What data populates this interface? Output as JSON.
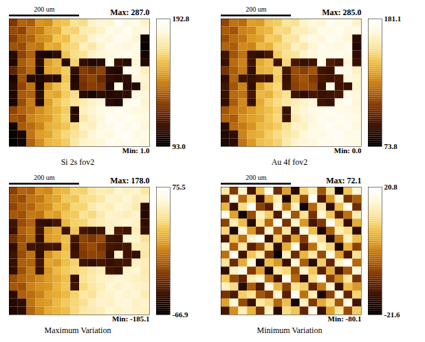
{
  "chart_data": [
    {
      "type": "heatmap",
      "title": "Si 2s fov2",
      "xlim": [
        0,
        400
      ],
      "ylim": [
        0,
        400
      ],
      "tick_labels": false,
      "scale_bar": {
        "label": "200 um",
        "length": 200
      },
      "max_label": "Max: 287.0",
      "min_label": "Min: 1.0",
      "colorbar": {
        "range": [
          93,
          192.8
        ],
        "ticks": [
          192.8,
          {
            "value": 93,
            "label": "93.0"
          }
        ]
      },
      "cells": [
        [
          124,
          136,
          134,
          148,
          146,
          158,
          160,
          170,
          168,
          178,
          182,
          180,
          188,
          184,
          186,
          178
        ],
        [
          130,
          128,
          140,
          142,
          152,
          154,
          166,
          164,
          174,
          174,
          178,
          186,
          184,
          188,
          182,
          184
        ],
        [
          126,
          134,
          136,
          146,
          148,
          160,
          158,
          170,
          170,
          180,
          184,
          182,
          188,
          186,
          180,
          98
        ],
        [
          132,
          130,
          142,
          140,
          154,
          152,
          164,
          166,
          176,
          172,
          180,
          186,
          184,
          182,
          186,
          96
        ],
        [
          104,
          128,
          136,
          102,
          100,
          106,
          160,
          168,
          170,
          178,
          182,
          184,
          186,
          188,
          184,
          100
        ],
        [
          102,
          134,
          140,
          104,
          150,
          156,
          104,
          164,
          106,
          102,
          104,
          186,
          108,
          104,
          182,
          102
        ],
        [
          118,
          130,
          138,
          100,
          152,
          154,
          162,
          106,
          126,
          122,
          128,
          104,
          102,
          188,
          186,
          176
        ],
        [
          100,
          132,
          104,
          102,
          106,
          104,
          160,
          102,
          124,
          128,
          120,
          106,
          104,
          106,
          182,
          180
        ],
        [
          104,
          128,
          140,
          100,
          148,
          158,
          164,
          104,
          122,
          126,
          124,
          102,
          186,
          104,
          102,
          178
        ],
        [
          102,
          134,
          136,
          106,
          154,
          152,
          162,
          168,
          104,
          100,
          106,
          102,
          104,
          106,
          184,
          182
        ],
        [
          100,
          130,
          142,
          102,
          150,
          160,
          166,
          170,
          174,
          178,
          182,
          104,
          102,
          186,
          188,
          180
        ],
        [
          128,
          136,
          140,
          146,
          152,
          156,
          162,
          102,
          176,
          180,
          184,
          186,
          188,
          186,
          184,
          182
        ],
        [
          132,
          130,
          144,
          148,
          150,
          158,
          164,
          104,
          172,
          178,
          182,
          188,
          186,
          188,
          186,
          184
        ],
        [
          98,
          134,
          138,
          144,
          154,
          156,
          160,
          168,
          178,
          176,
          184,
          186,
          190,
          186,
          188,
          182
        ],
        [
          96,
          100,
          140,
          150,
          152,
          160,
          166,
          170,
          174,
          182,
          186,
          184,
          188,
          190,
          184,
          186
        ],
        [
          94,
          98,
          136,
          146,
          156,
          158,
          162,
          172,
          178,
          180,
          182,
          188,
          186,
          188,
          186,
          184
        ]
      ]
    },
    {
      "type": "heatmap",
      "title": "Au 4f fov2",
      "xlim": [
        0,
        400
      ],
      "ylim": [
        0,
        400
      ],
      "tick_labels": false,
      "scale_bar": {
        "label": "200 um",
        "length": 200
      },
      "max_label": "Max: 285.0",
      "min_label": "Min: 0.0",
      "colorbar": {
        "range": [
          73.8,
          181.1
        ],
        "ticks": [
          181.1,
          73.8
        ]
      },
      "cells": [
        [
          112,
          124,
          122,
          136,
          134,
          146,
          148,
          158,
          156,
          166,
          170,
          168,
          176,
          172,
          174,
          166
        ],
        [
          118,
          116,
          128,
          130,
          140,
          142,
          154,
          152,
          162,
          162,
          166,
          174,
          172,
          176,
          170,
          172
        ],
        [
          114,
          122,
          124,
          134,
          136,
          148,
          146,
          158,
          158,
          168,
          172,
          170,
          176,
          174,
          168,
          86
        ],
        [
          120,
          118,
          130,
          128,
          142,
          140,
          152,
          154,
          164,
          160,
          168,
          174,
          172,
          170,
          174,
          84
        ],
        [
          92,
          116,
          124,
          90,
          88,
          94,
          148,
          156,
          158,
          166,
          170,
          172,
          174,
          176,
          172,
          88
        ],
        [
          90,
          122,
          128,
          92,
          138,
          144,
          92,
          152,
          94,
          90,
          92,
          174,
          96,
          92,
          170,
          90
        ],
        [
          106,
          118,
          126,
          88,
          140,
          142,
          150,
          94,
          114,
          110,
          116,
          92,
          90,
          176,
          174,
          164
        ],
        [
          88,
          120,
          92,
          90,
          94,
          92,
          148,
          90,
          112,
          116,
          108,
          94,
          92,
          94,
          170,
          168
        ],
        [
          92,
          116,
          128,
          88,
          136,
          146,
          152,
          92,
          110,
          114,
          112,
          90,
          174,
          92,
          90,
          166
        ],
        [
          90,
          122,
          124,
          94,
          142,
          140,
          150,
          156,
          92,
          88,
          94,
          90,
          92,
          94,
          172,
          170
        ],
        [
          88,
          118,
          130,
          90,
          138,
          148,
          154,
          158,
          162,
          166,
          170,
          92,
          90,
          174,
          176,
          168
        ],
        [
          116,
          124,
          128,
          134,
          140,
          144,
          150,
          90,
          164,
          168,
          172,
          174,
          176,
          174,
          172,
          170
        ],
        [
          120,
          118,
          132,
          136,
          138,
          146,
          152,
          92,
          160,
          166,
          170,
          176,
          174,
          176,
          174,
          172
        ],
        [
          86,
          122,
          126,
          132,
          142,
          144,
          148,
          156,
          166,
          164,
          172,
          174,
          178,
          174,
          176,
          170
        ],
        [
          84,
          88,
          128,
          138,
          140,
          148,
          154,
          158,
          162,
          170,
          174,
          172,
          176,
          178,
          172,
          174
        ],
        [
          82,
          86,
          124,
          134,
          144,
          146,
          150,
          160,
          166,
          168,
          170,
          176,
          174,
          176,
          174,
          172
        ]
      ]
    },
    {
      "type": "heatmap",
      "title": "Maximum Variation",
      "xlim": [
        0,
        400
      ],
      "ylim": [
        0,
        400
      ],
      "tick_labels": false,
      "scale_bar": {
        "label": "200 um",
        "length": 200
      },
      "max_label": "Max: 178.0",
      "min_label": "Min: -185.1",
      "colorbar": {
        "range": [
          -66.9,
          75.5
        ],
        "ticks": [
          75.5,
          -66.9
        ]
      },
      "cells": [
        [
          -19,
          -5,
          -7,
          10,
          7,
          22,
          24,
          36,
          34,
          46,
          50,
          48,
          58,
          53,
          55,
          46
        ],
        [
          -12,
          -14,
          0,
          2,
          14,
          17,
          31,
          29,
          41,
          41,
          46,
          55,
          53,
          58,
          50,
          53
        ],
        [
          -17,
          -7,
          -5,
          7,
          10,
          24,
          22,
          36,
          36,
          48,
          53,
          50,
          58,
          55,
          48,
          -50
        ],
        [
          -10,
          -12,
          2,
          0,
          17,
          14,
          29,
          31,
          43,
          38,
          48,
          55,
          53,
          50,
          55,
          -53
        ],
        [
          -43,
          -14,
          -5,
          -46,
          -48,
          -41,
          24,
          34,
          36,
          46,
          50,
          53,
          55,
          58,
          53,
          -48
        ],
        [
          -46,
          -7,
          0,
          -43,
          12,
          19,
          -43,
          29,
          -41,
          -46,
          -43,
          55,
          -38,
          -43,
          50,
          -46
        ],
        [
          -26,
          -12,
          -2,
          -48,
          14,
          17,
          26,
          -41,
          -17,
          -22,
          -14,
          -43,
          -46,
          58,
          55,
          43
        ],
        [
          -48,
          -10,
          -43,
          -46,
          -41,
          -43,
          24,
          -46,
          -19,
          -14,
          -24,
          -41,
          -43,
          -41,
          50,
          48
        ],
        [
          -43,
          -14,
          0,
          -48,
          10,
          22,
          29,
          -43,
          -22,
          -17,
          -19,
          -46,
          55,
          -43,
          -46,
          46
        ],
        [
          -46,
          -7,
          -5,
          -41,
          17,
          14,
          26,
          34,
          -43,
          -48,
          -41,
          -46,
          -43,
          -41,
          53,
          50
        ],
        [
          -48,
          -12,
          2,
          -46,
          12,
          24,
          31,
          36,
          41,
          46,
          50,
          -43,
          -46,
          55,
          58,
          48
        ],
        [
          -14,
          -5,
          0,
          7,
          14,
          19,
          26,
          -46,
          43,
          48,
          53,
          55,
          58,
          55,
          53,
          50
        ],
        [
          -10,
          -12,
          5,
          10,
          12,
          22,
          29,
          -43,
          38,
          46,
          50,
          58,
          55,
          58,
          55,
          53
        ],
        [
          -50,
          -7,
          -2,
          5,
          17,
          19,
          24,
          34,
          46,
          43,
          53,
          55,
          60,
          55,
          58,
          50
        ],
        [
          -53,
          -48,
          0,
          12,
          14,
          24,
          31,
          36,
          41,
          50,
          55,
          53,
          58,
          60,
          53,
          55
        ],
        [
          -55,
          -50,
          -5,
          7,
          19,
          22,
          26,
          38,
          46,
          48,
          50,
          58,
          55,
          58,
          55,
          53
        ]
      ]
    },
    {
      "type": "heatmap",
      "title": "Minimum Variation",
      "xlim": [
        0,
        400
      ],
      "ylim": [
        0,
        400
      ],
      "tick_labels": false,
      "scale_bar": {
        "label": "200 um",
        "length": 200
      },
      "max_label": "Max: 72.1",
      "min_label": "Min: -80.1",
      "colorbar": {
        "range": [
          -21.6,
          20.8
        ],
        "ticks": [
          20.8,
          -21.6
        ]
      },
      "cells": [
        [
          12,
          -8,
          15,
          -14,
          6,
          18,
          -10,
          3,
          -17,
          9,
          14,
          -5,
          11,
          -19,
          7,
          16
        ],
        [
          -11,
          17,
          -3,
          9,
          -16,
          4,
          13,
          -18,
          8,
          -6,
          19,
          -13,
          2,
          15,
          -9,
          -4
        ],
        [
          5,
          -15,
          10,
          19,
          -7,
          -12,
          16,
          -2,
          14,
          -20,
          -3,
          12,
          -16,
          6,
          18,
          -10
        ],
        [
          18,
          3,
          -19,
          -6,
          14,
          8,
          -13,
          17,
          -5,
          11,
          -9,
          16,
          7,
          -12,
          -2,
          13
        ],
        [
          -7,
          13,
          6,
          -17,
          11,
          -3,
          19,
          -9,
          15,
          2,
          -14,
          -8,
          18,
          9,
          -15,
          4
        ],
        [
          9,
          -18,
          16,
          2,
          -10,
          15,
          -5,
          12,
          -14,
          17,
          6,
          -19,
          -4,
          13,
          10,
          -16
        ],
        [
          -13,
          7,
          -2,
          15,
          19,
          -15,
          8,
          -11,
          3,
          -8,
          16,
          10,
          -17,
          -1,
          14,
          6
        ],
        [
          16,
          -4,
          12,
          -12,
          -6,
          10,
          -16,
          4,
          18,
          -13,
          -2,
          15,
          9,
          -18,
          5,
          -7
        ],
        [
          -2,
          19,
          -14,
          7,
          13,
          -9,
          -21,
          14,
          -10,
          5,
          12,
          -6,
          17,
          3,
          -13,
          11
        ],
        [
          11,
          -10,
          4,
          17,
          -18,
          6,
          2,
          -15,
          16,
          -4,
          -17,
          8,
          -11,
          14,
          19,
          -3
        ],
        [
          -16,
          14,
          18,
          -8,
          3,
          -19,
          12,
          9,
          -6,
          15,
          7,
          -12,
          4,
          -14,
          -5,
          17
        ],
        [
          7,
          -6,
          -11,
          13,
          16,
          -2,
          -14,
          18,
          -3,
          -16,
          10,
          19,
          -8,
          1,
          12,
          -9
        ],
        [
          14,
          10,
          -17,
          -4,
          -13,
          17,
          5,
          -7,
          11,
          8,
          -11,
          -1,
          15,
          -15,
          6,
          2
        ],
        [
          -9,
          -13,
          8,
          11,
          -5,
          -8,
          15,
          -12,
          19,
          -2,
          13,
          -18,
          -7,
          16,
          -11,
          9
        ],
        [
          3,
          16,
          -6,
          -15,
          12,
          9,
          -3,
          6,
          -19,
          14,
          -8,
          4,
          10,
          -5,
          17,
          -14
        ],
        [
          -14,
          1,
          13,
          5,
          -9,
          14,
          -17,
          10,
          7,
          -11,
          18,
          -15,
          3,
          12,
          -6,
          8
        ]
      ]
    }
  ]
}
